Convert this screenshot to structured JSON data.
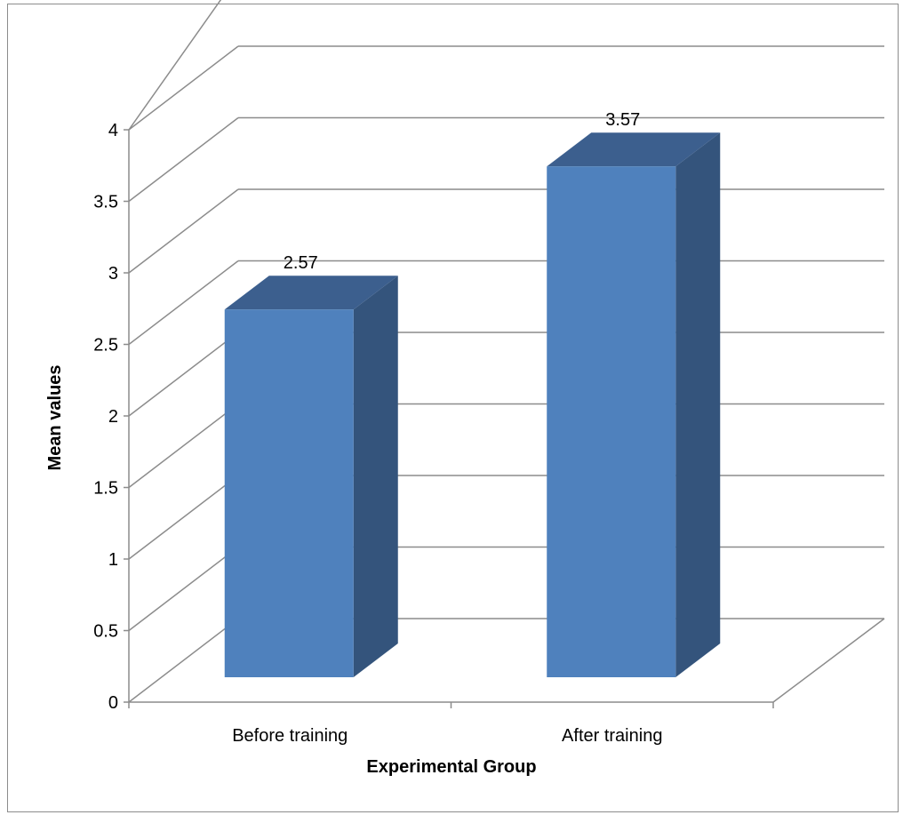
{
  "chart_data": {
    "type": "bar",
    "style": "3d-column",
    "categories": [
      "Before training",
      "After training"
    ],
    "values": [
      2.57,
      3.57
    ],
    "data_labels": [
      "2.57",
      "3.57"
    ],
    "xlabel": "Experimental Group",
    "ylabel": "Mean values",
    "ylim": [
      0,
      4
    ],
    "yticks": [
      "0",
      "0.5",
      "1",
      "1.5",
      "2",
      "2.5",
      "3",
      "3.5",
      "4"
    ],
    "grid": true,
    "legend": "none",
    "colors": {
      "bar_front": "#4f81bd",
      "bar_top": "#3c5f8e",
      "bar_side": "#34547c",
      "grid": "#8c8c8c"
    }
  }
}
